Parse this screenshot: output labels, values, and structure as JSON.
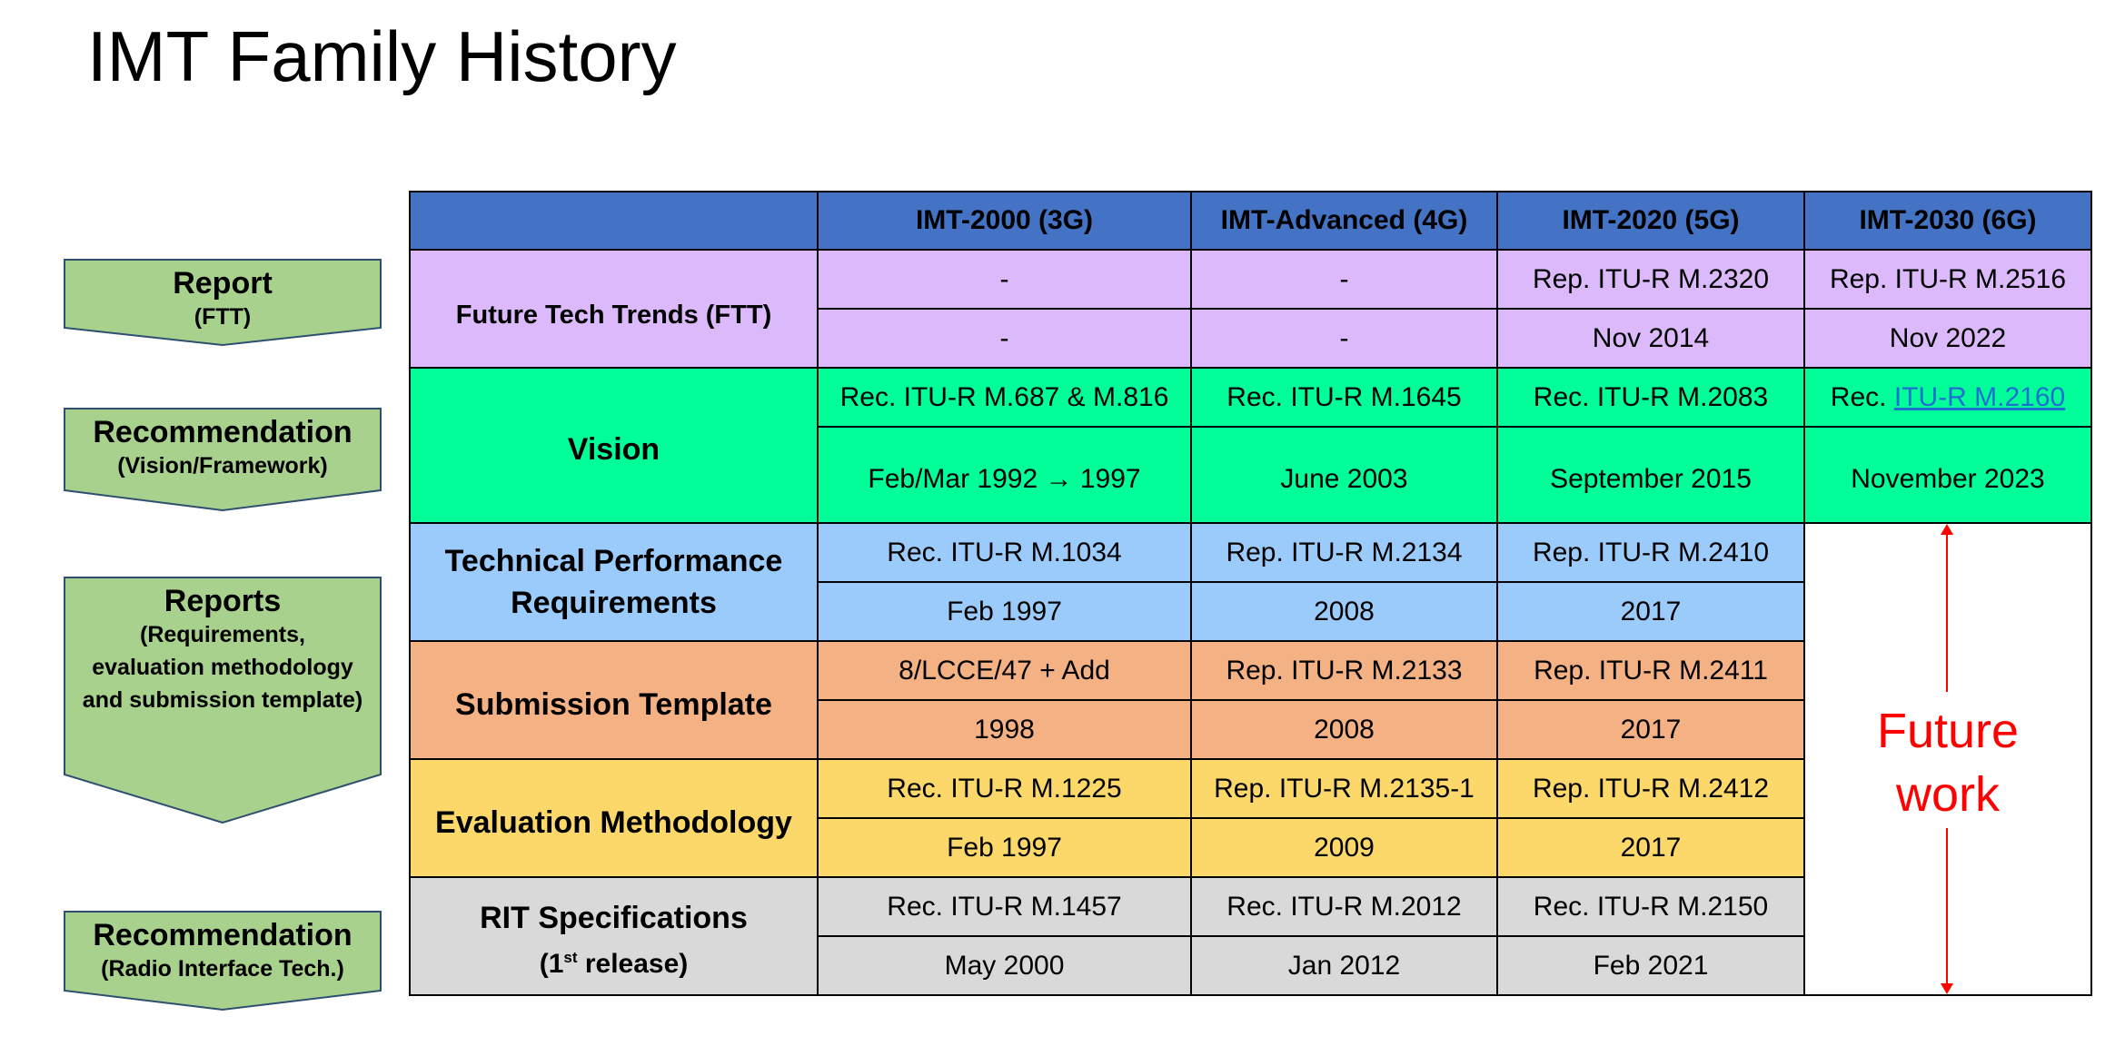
{
  "title": "IMT Family History",
  "sidebar": {
    "items": [
      {
        "main": "Report",
        "sub": "(FTT)"
      },
      {
        "main": "Recommendation",
        "sub": "(Vision/Framework)"
      },
      {
        "main": "Reports",
        "sub1": "(Requirements,",
        "sub2": "evaluation methodology",
        "sub3": "and submission template)"
      },
      {
        "main": "Recommendation",
        "sub": "(Radio Interface Tech.)"
      }
    ]
  },
  "table": {
    "headers": [
      "",
      "IMT-2000 (3G)",
      "IMT-Advanced (4G)",
      "IMT-2020 (5G)",
      "IMT-2030 (6G)"
    ],
    "ftt": {
      "label": "Future Tech Trends (FTT)",
      "row1": [
        "-",
        "-",
        "Rep. ITU-R M.2320",
        "Rep. ITU-R M.2516"
      ],
      "row2": [
        "-",
        "-",
        "Nov 2014",
        "Nov 2022"
      ]
    },
    "vision": {
      "label": "Vision",
      "row1": [
        "Rec. ITU-R M.687 & M.816",
        "Rec. ITU-R M.1645",
        "Rec. ITU-R M.2083"
      ],
      "row1_last_prefix": "Rec. ",
      "row1_last_link": "ITU-R M.2160",
      "row2": [
        "Feb/Mar 1992 → 1997",
        "June 2003",
        "September 2015",
        "November 2023"
      ]
    },
    "tpr": {
      "label1": "Technical Performance",
      "label2": "Requirements",
      "row1": [
        "Rec. ITU-R M.1034",
        "Rep. ITU-R M.2134",
        "Rep. ITU-R M.2410"
      ],
      "row2": [
        "Feb 1997",
        "2008",
        "2017"
      ]
    },
    "submission": {
      "label": "Submission Template",
      "row1": [
        "8/LCCE/47 + Add",
        "Rep. ITU-R M.2133",
        "Rep. ITU-R M.2411"
      ],
      "row2": [
        "1998",
        "2008",
        "2017"
      ]
    },
    "evaluation": {
      "label": "Evaluation Methodology",
      "row1": [
        "Rec. ITU-R M.1225",
        "Rep. ITU-R M.2135-1",
        "Rep. ITU-R  M.2412"
      ],
      "row2": [
        "Feb 1997",
        "2009",
        "2017"
      ]
    },
    "rit": {
      "label": "RIT Specifications",
      "label2_pre": "(1",
      "label2_sup": "st",
      "label2_post": " release)",
      "row1": [
        "Rec. ITU-R M.1457",
        "Rec. ITU-R M.2012",
        "Rec. ITU-R M.2150"
      ],
      "row2": [
        "May 2000",
        "Jan 2012",
        "Feb 2021"
      ]
    },
    "future": {
      "line1": "Future",
      "line2": "work"
    }
  },
  "colors": {
    "header_bg": "#4472c4",
    "header_text": "#ffff00",
    "ftt": "#dbb9fb",
    "vision": "#00ff99",
    "tpr": "#9bcbfb",
    "submission": "#f4b183",
    "evaluation": "#fcd86b",
    "rit": "#d9d9d9",
    "chevron": "#a9d18e",
    "future": "#ff0000"
  }
}
